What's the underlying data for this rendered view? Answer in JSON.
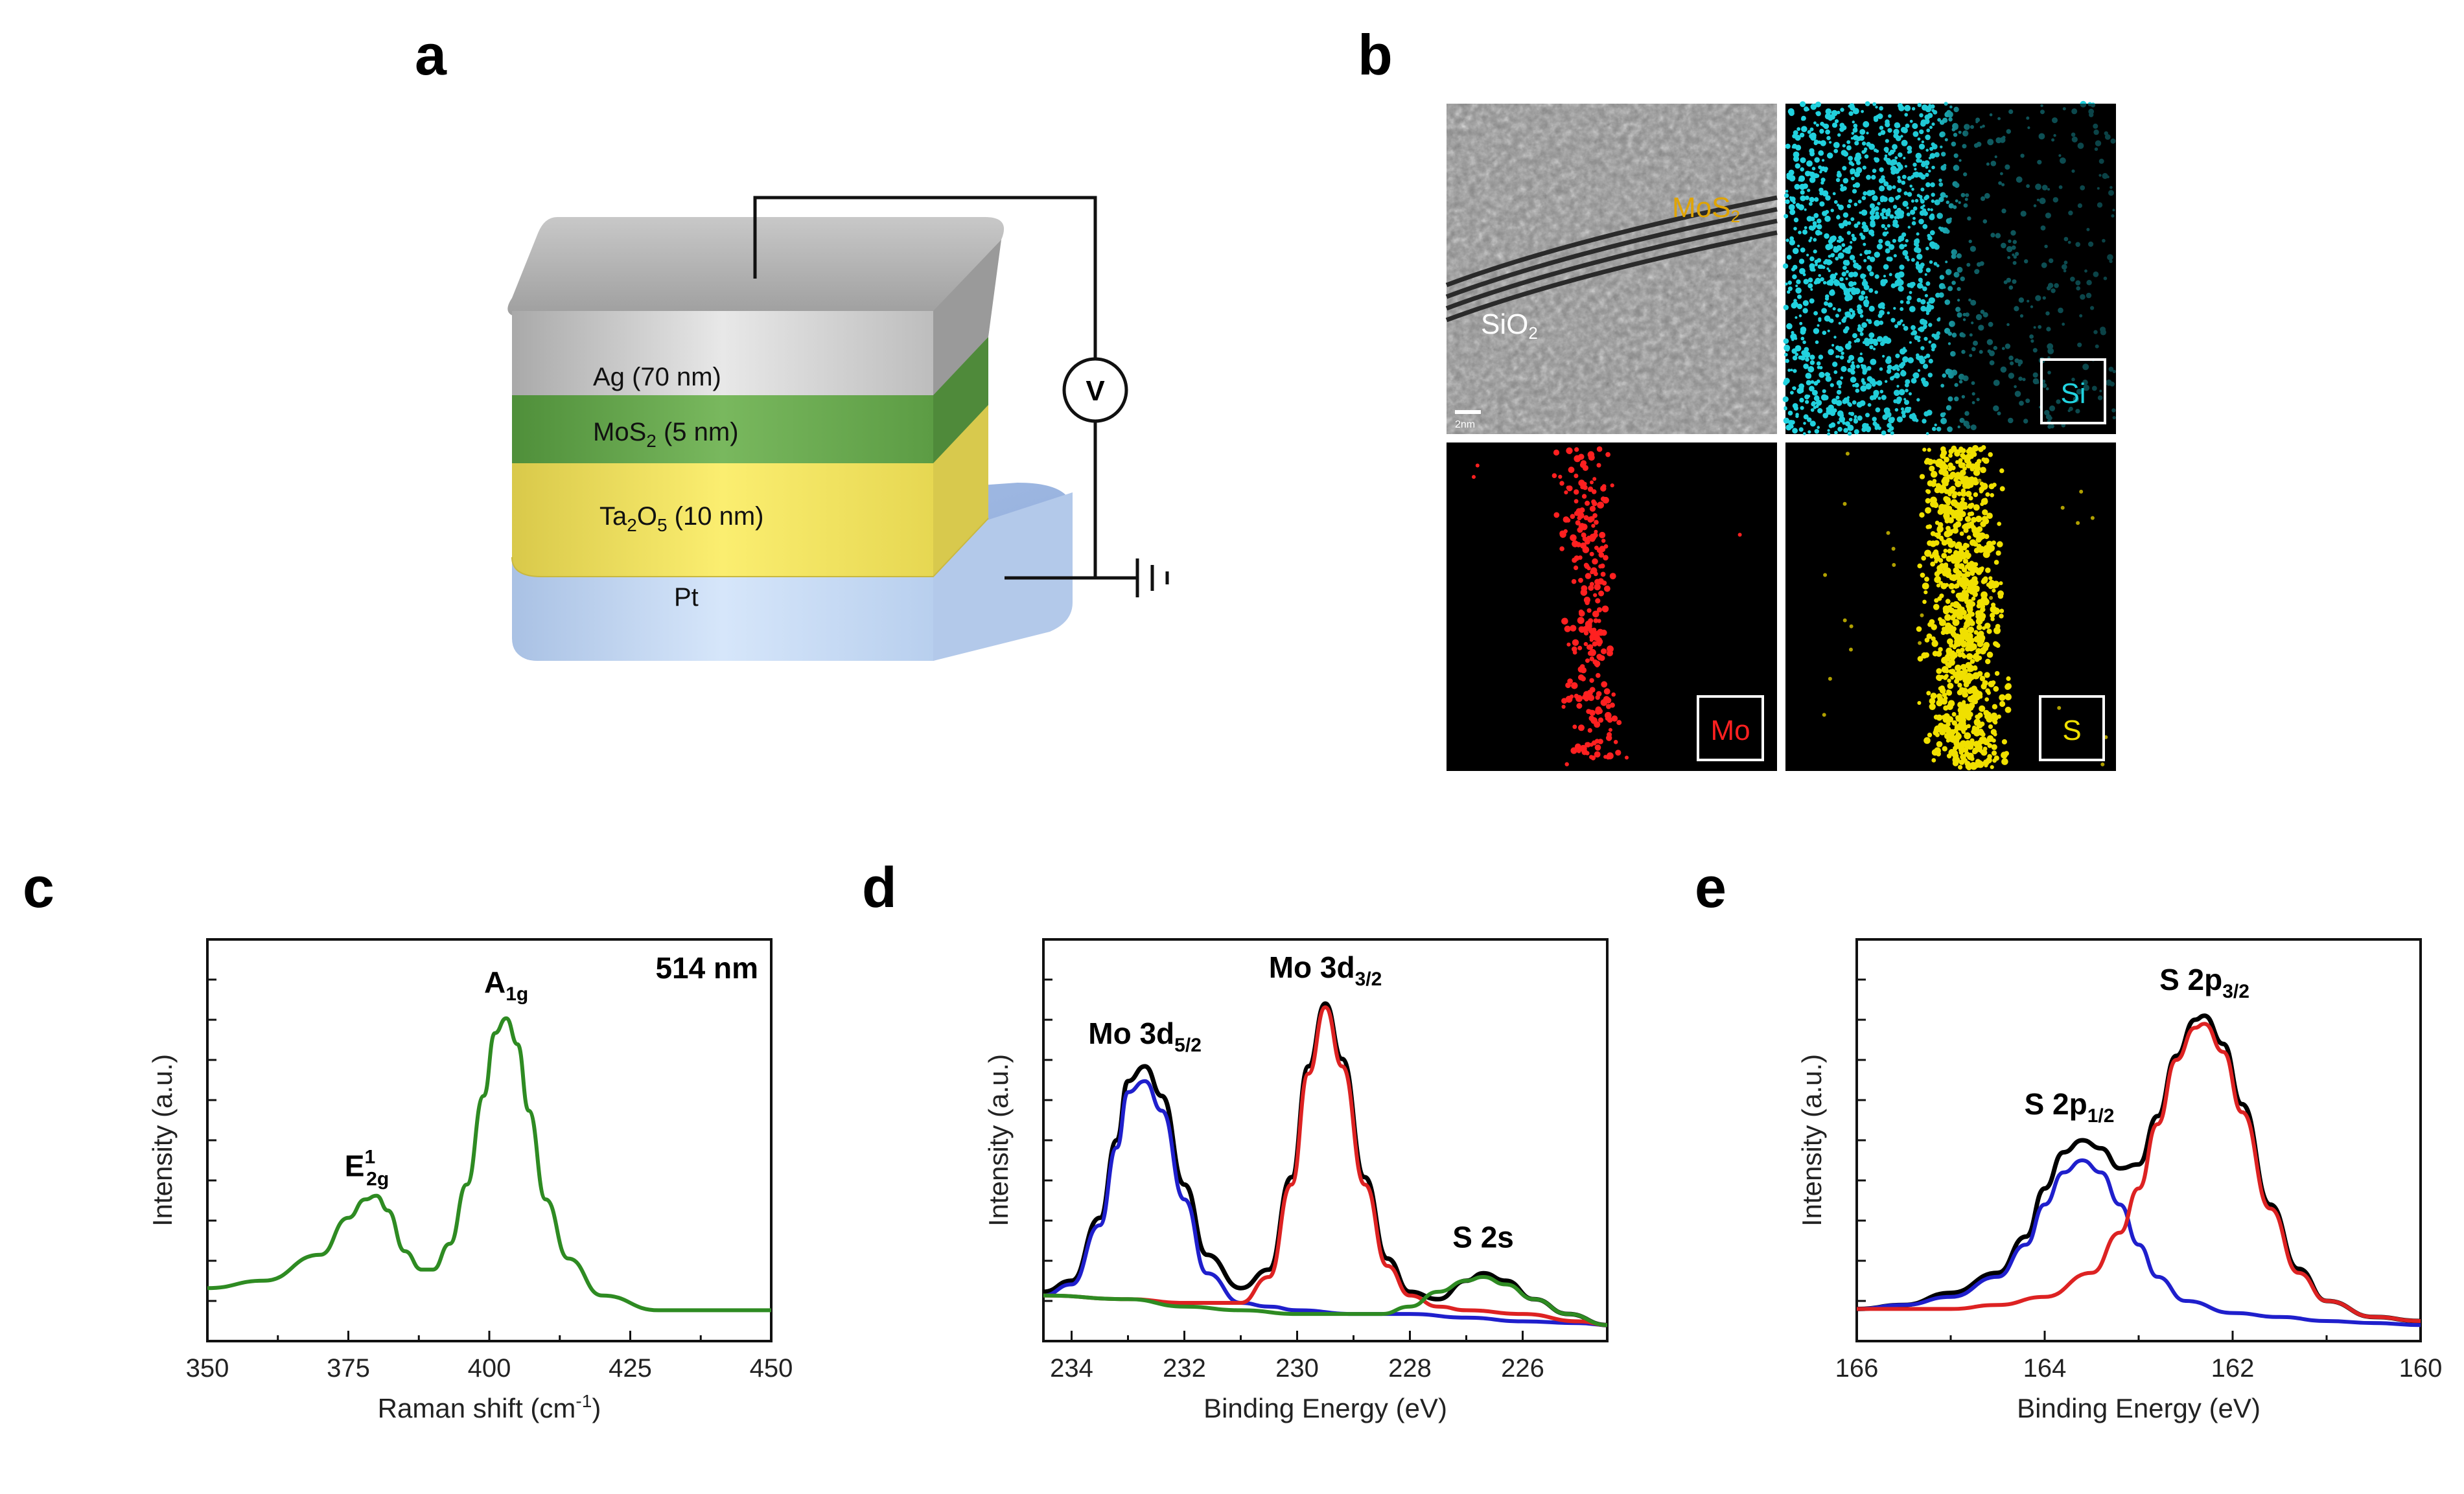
{
  "panels": {
    "a": "a",
    "b": "b",
    "c": "c",
    "d": "d",
    "e": "e"
  },
  "device": {
    "layers": [
      {
        "name": "Ag",
        "thickness": "(70 nm)"
      },
      {
        "name": "MoS",
        "sub": "2",
        "thickness": " (5 nm)"
      },
      {
        "name": "Ta",
        "sub1": "2",
        "mid": "O",
        "sub2": "5",
        "thickness": " (10 nm)"
      },
      {
        "name": "Pt"
      }
    ],
    "voltage_symbol": "V",
    "colors": {
      "ag": "#bdbdbd",
      "mos2": "#6aa84f",
      "ta2o5": "#f2e45a",
      "pt": "#c9dcf5"
    }
  },
  "tem": {
    "mos2_label": "MoS",
    "mos2_sub": "2",
    "sio2_label": "SiO",
    "sio2_sub": "2",
    "scale_label": "2nm",
    "maps": [
      {
        "element": "Si",
        "color": "#22d3e0"
      },
      {
        "element": "Mo",
        "color": "#ff2020"
      },
      {
        "element": "S",
        "color": "#f0e000"
      }
    ]
  },
  "chart_data": [
    {
      "panel": "c",
      "type": "line",
      "xlabel": "Raman shift (cm",
      "xlabel_sup": "-1",
      "xlabel_end": ")",
      "ylabel": "Intensity (a.u.)",
      "xlim": [
        350,
        450
      ],
      "xticks": [
        350,
        375,
        400,
        425,
        450
      ],
      "annotation": "514 nm",
      "peaks": [
        {
          "label": "E",
          "sup": "1",
          "sub": "2g",
          "x": 380
        },
        {
          "label": "A",
          "sub": "1g",
          "x": 403
        }
      ],
      "series": [
        {
          "color": "#2e8b22",
          "x": [
            350,
            360,
            370,
            375,
            378,
            380,
            382,
            385,
            388,
            390,
            393,
            396,
            399,
            401,
            403,
            405,
            407,
            410,
            414,
            420,
            430,
            440,
            450
          ],
          "y": [
            0.1,
            0.12,
            0.19,
            0.29,
            0.34,
            0.35,
            0.31,
            0.2,
            0.15,
            0.15,
            0.22,
            0.38,
            0.62,
            0.79,
            0.83,
            0.76,
            0.58,
            0.34,
            0.18,
            0.08,
            0.04,
            0.04,
            0.04
          ]
        }
      ]
    },
    {
      "panel": "d",
      "type": "line",
      "xlabel": "Binding Energy (eV)",
      "ylabel": "Intensity (a.u.)",
      "xlim": [
        234.5,
        224.5
      ],
      "xticks": [
        234,
        232,
        230,
        228,
        226
      ],
      "peaks": [
        {
          "label": "Mo 3d",
          "sub": "5/2",
          "x": 232.7
        },
        {
          "label": "Mo 3d",
          "sub": "3/2",
          "x": 229.5
        },
        {
          "label": "S 2s",
          "x": 226.7
        }
      ],
      "series": [
        {
          "color": "#000000",
          "x": [
            234.5,
            234,
            233.5,
            233.2,
            233,
            232.7,
            232.4,
            232,
            231.6,
            231,
            230.5,
            230.1,
            229.8,
            229.5,
            229.2,
            228.8,
            228.4,
            228,
            227.5,
            227,
            226.7,
            226.3,
            225.8,
            225.2,
            224.5
          ],
          "y": [
            0.09,
            0.12,
            0.29,
            0.5,
            0.66,
            0.7,
            0.62,
            0.38,
            0.19,
            0.1,
            0.15,
            0.4,
            0.7,
            0.87,
            0.72,
            0.4,
            0.18,
            0.09,
            0.07,
            0.12,
            0.14,
            0.12,
            0.07,
            0.03,
            0.0
          ]
        },
        {
          "color": "#1f1fcc",
          "x": [
            234.5,
            234,
            233.5,
            233.2,
            233,
            232.7,
            232.4,
            232,
            231.6,
            231,
            230.5,
            230,
            229,
            228,
            227,
            226,
            225,
            224.5
          ],
          "y": [
            0.08,
            0.11,
            0.27,
            0.48,
            0.63,
            0.66,
            0.58,
            0.34,
            0.14,
            0.06,
            0.05,
            0.04,
            0.03,
            0.03,
            0.02,
            0.01,
            0.005,
            0.0
          ]
        },
        {
          "color": "#dd2222",
          "x": [
            234.5,
            233,
            232,
            231,
            230.5,
            230.1,
            229.8,
            229.5,
            229.2,
            228.8,
            228.4,
            228,
            227.5,
            227,
            226,
            225,
            224.5
          ],
          "y": [
            0.08,
            0.07,
            0.06,
            0.06,
            0.13,
            0.38,
            0.68,
            0.86,
            0.7,
            0.38,
            0.16,
            0.08,
            0.05,
            0.04,
            0.03,
            0.01,
            0.0
          ]
        },
        {
          "color": "#2e8b22",
          "x": [
            234.5,
            233,
            232,
            231,
            230,
            229,
            228.5,
            228,
            227.5,
            227,
            226.7,
            226.3,
            225.8,
            225.2,
            224.5
          ],
          "y": [
            0.08,
            0.07,
            0.05,
            0.04,
            0.03,
            0.03,
            0.03,
            0.05,
            0.09,
            0.12,
            0.13,
            0.11,
            0.07,
            0.03,
            0.0
          ]
        }
      ]
    },
    {
      "panel": "e",
      "type": "line",
      "xlabel": "Binding Energy (eV)",
      "ylabel": "Intensity (a.u.)",
      "xlim": [
        166,
        160
      ],
      "xticks": [
        166,
        164,
        162,
        160
      ],
      "peaks": [
        {
          "label": "S 2p",
          "sub": "1/2",
          "x": 163.6
        },
        {
          "label": "S 2p",
          "sub": "3/2",
          "x": 162.3
        }
      ],
      "series": [
        {
          "color": "#000000",
          "x": [
            166,
            165.5,
            165,
            164.5,
            164.2,
            164,
            163.8,
            163.6,
            163.4,
            163.2,
            163,
            162.8,
            162.6,
            162.4,
            162.3,
            162.1,
            161.9,
            161.6,
            161.3,
            161,
            160.5,
            160
          ],
          "y": [
            0.04,
            0.05,
            0.08,
            0.13,
            0.22,
            0.34,
            0.43,
            0.46,
            0.44,
            0.39,
            0.4,
            0.52,
            0.67,
            0.76,
            0.77,
            0.7,
            0.55,
            0.3,
            0.14,
            0.06,
            0.02,
            0.01
          ]
        },
        {
          "color": "#1f1fcc",
          "x": [
            166,
            165.5,
            165,
            164.5,
            164.2,
            164,
            163.8,
            163.6,
            163.4,
            163.2,
            163,
            162.8,
            162.5,
            162,
            161.5,
            161,
            160.5,
            160
          ],
          "y": [
            0.04,
            0.05,
            0.07,
            0.12,
            0.2,
            0.3,
            0.38,
            0.41,
            0.38,
            0.3,
            0.2,
            0.12,
            0.06,
            0.03,
            0.02,
            0.01,
            0.005,
            0.0
          ]
        },
        {
          "color": "#dd2222",
          "x": [
            166,
            165,
            164.5,
            164,
            163.5,
            163.2,
            163,
            162.8,
            162.6,
            162.4,
            162.3,
            162.1,
            161.9,
            161.6,
            161.3,
            161,
            160.5,
            160
          ],
          "y": [
            0.04,
            0.04,
            0.05,
            0.07,
            0.13,
            0.23,
            0.34,
            0.5,
            0.66,
            0.74,
            0.75,
            0.68,
            0.53,
            0.29,
            0.13,
            0.06,
            0.02,
            0.01
          ]
        }
      ]
    }
  ]
}
